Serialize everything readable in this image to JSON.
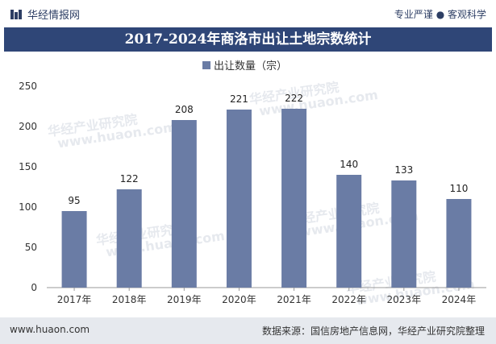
{
  "header": {
    "brand": "华经情报网",
    "tagline": "专业严谨 ● 客观科学"
  },
  "footer": {
    "site": "www.huaon.com",
    "source": "数据来源：国信房地产信息网，华经产业研究院整理"
  },
  "watermark": {
    "text": "华经产业研究院",
    "url": "www.huaon.com"
  },
  "colors": {
    "bar": "#6a7ca5",
    "title_bg": "#2f4677"
  },
  "chart_data": {
    "type": "bar",
    "title": "2017-2024年商洛市出让土地宗数统计",
    "xlabel": "",
    "ylabel": "",
    "categories": [
      "2017年",
      "2018年",
      "2019年",
      "2020年",
      "2021年",
      "2022年",
      "2023年",
      "2024年"
    ],
    "series": [
      {
        "name": "出让数量（宗）",
        "values": [
          95,
          122,
          208,
          221,
          222,
          140,
          133,
          110
        ]
      }
    ],
    "ylim": [
      0,
      250
    ],
    "yticks": [
      0,
      50,
      100,
      150,
      200,
      250
    ],
    "legend": "top-center",
    "grid": false
  }
}
